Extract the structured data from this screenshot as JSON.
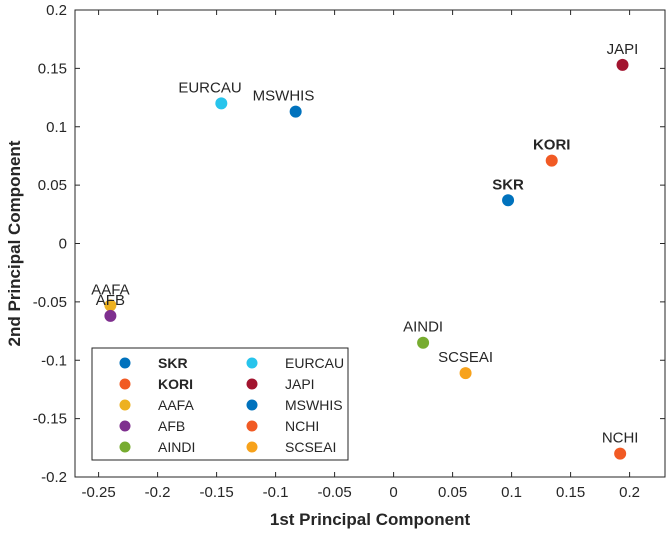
{
  "chart_data": {
    "type": "scatter",
    "title": "",
    "xlabel": "1st Principal Component",
    "ylabel": "2nd Principal Component",
    "xlim": [
      -0.27,
      0.23
    ],
    "ylim": [
      -0.2,
      0.2
    ],
    "x_ticks": [
      -0.25,
      -0.2,
      -0.15,
      -0.1,
      -0.05,
      0,
      0.05,
      0.1,
      0.15,
      0.2
    ],
    "x_tick_labels": [
      "-0.25",
      "-0.2",
      "-0.15",
      "-0.1",
      "-0.05",
      "0",
      "0.05",
      "0.1",
      "0.15",
      "0.2"
    ],
    "y_ticks": [
      -0.2,
      -0.15,
      -0.1,
      -0.05,
      0,
      0.05,
      0.1,
      0.15,
      0.2
    ],
    "y_tick_labels": [
      "-0.2",
      "-0.15",
      "-0.1",
      "-0.05",
      "0",
      "0.05",
      "0.1",
      "0.15",
      "0.2"
    ],
    "grid": false,
    "legend_position": "bottom-left",
    "series": [
      {
        "name": "SKR",
        "x": 0.097,
        "y": 0.037,
        "color": "#0072BD",
        "label_color": "#FF0000",
        "label_bold": true,
        "label_anchor": "middle",
        "label_side": "above"
      },
      {
        "name": "KORI",
        "x": 0.134,
        "y": 0.071,
        "color": "#F15A24",
        "label_color": "#262626",
        "label_bold": true,
        "label_anchor": "middle",
        "label_side": "above"
      },
      {
        "name": "AAFA",
        "x": -0.24,
        "y": -0.053,
        "color": "#EDB120",
        "label_color": "#262626",
        "label_bold": false,
        "label_anchor": "middle",
        "label_side": "above"
      },
      {
        "name": "AFB",
        "x": -0.24,
        "y": -0.062,
        "color": "#7E2F8E",
        "label_color": "#262626",
        "label_bold": false,
        "label_anchor": "middle",
        "label_side": "above"
      },
      {
        "name": "AINDI",
        "x": 0.025,
        "y": -0.085,
        "color": "#77AC30",
        "label_color": "#262626",
        "label_bold": false,
        "label_anchor": "middle",
        "label_side": "above"
      },
      {
        "name": "EURCAU",
        "x": -0.146,
        "y": 0.12,
        "color": "#27C4EC",
        "label_color": "#262626",
        "label_bold": false,
        "label_anchor": "start",
        "label_side": "above"
      },
      {
        "name": "JAPI",
        "x": 0.194,
        "y": 0.153,
        "color": "#A2142F",
        "label_color": "#262626",
        "label_bold": false,
        "label_anchor": "middle",
        "label_side": "above"
      },
      {
        "name": "MSWHIS",
        "x": -0.083,
        "y": 0.113,
        "color": "#0072BD",
        "label_color": "#262626",
        "label_bold": false,
        "label_anchor": "start",
        "label_side": "above"
      },
      {
        "name": "NCHI",
        "x": 0.192,
        "y": -0.18,
        "color": "#F15A24",
        "label_color": "#262626",
        "label_bold": false,
        "label_anchor": "middle",
        "label_side": "above"
      },
      {
        "name": "SCSEAI",
        "x": 0.061,
        "y": -0.111,
        "color": "#F7A21B",
        "label_color": "#262626",
        "label_bold": false,
        "label_anchor": "middle",
        "label_side": "above"
      }
    ]
  }
}
